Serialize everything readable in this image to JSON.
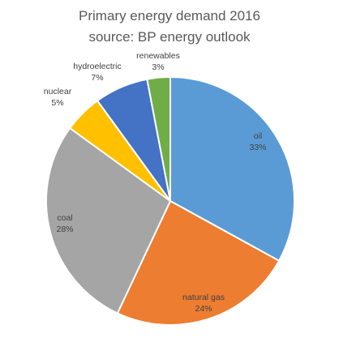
{
  "chart_data": {
    "type": "pie",
    "title": "Primary energy demand 2016",
    "subtitle": "source: BP energy outlook",
    "slices": [
      {
        "label": "oil",
        "value": 33,
        "value_label": "33%",
        "color": "#5b9bd5"
      },
      {
        "label": "natural gas",
        "value": 24,
        "value_label": "24%",
        "color": "#ed7d31"
      },
      {
        "label": "coal",
        "value": 28,
        "value_label": "28%",
        "color": "#a5a5a5"
      },
      {
        "label": "nuclear",
        "value": 5,
        "value_label": "5%",
        "color": "#ffc000"
      },
      {
        "label": "hydroelectric",
        "value": 7,
        "value_label": "7%",
        "color": "#4472c4"
      },
      {
        "label": "renewables",
        "value": 3,
        "value_label": "3%",
        "color": "#70ad47"
      }
    ],
    "start_angle_deg": 0,
    "direction": "clockwise",
    "legend": "none"
  }
}
